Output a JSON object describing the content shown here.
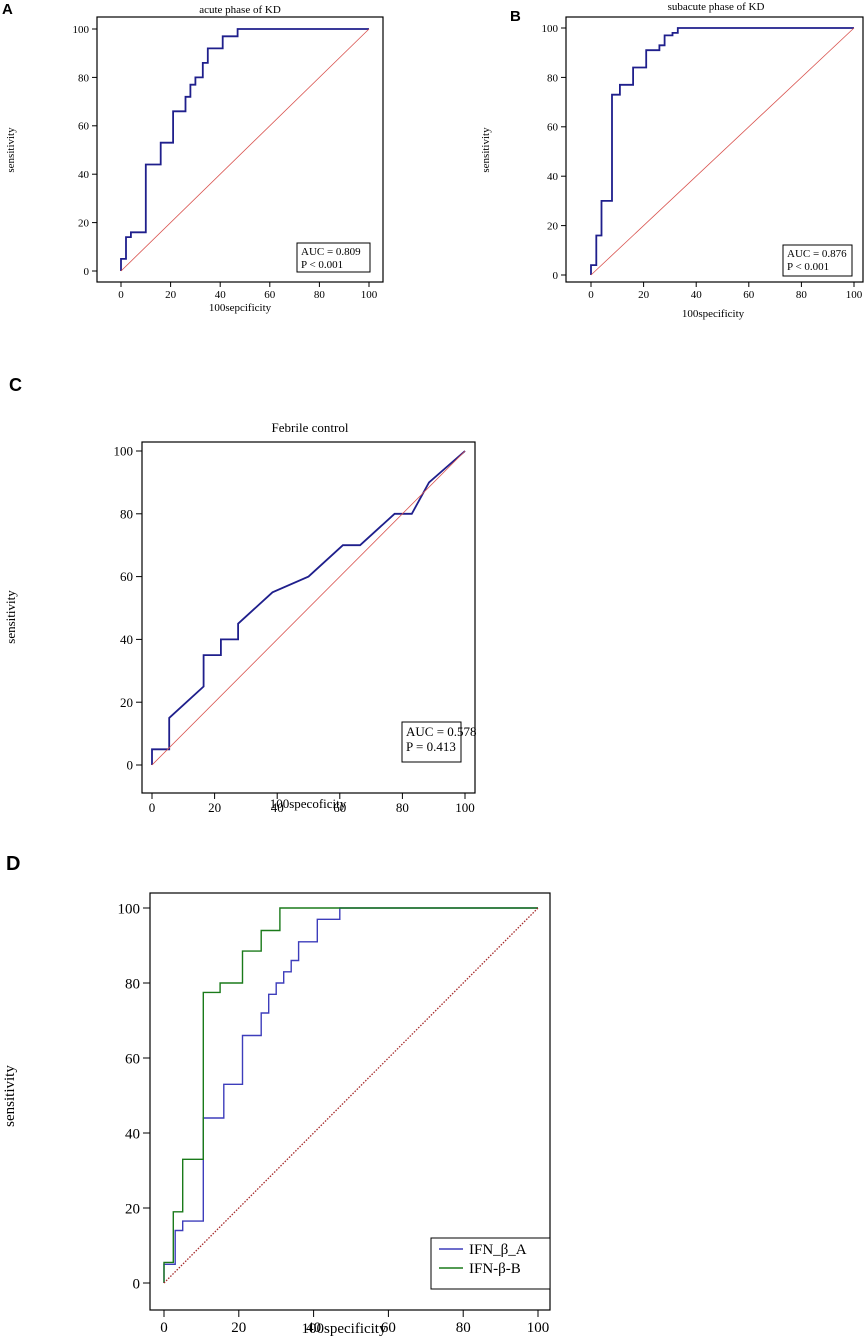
{
  "chart_data": [
    {
      "type": "line",
      "panel_label": "A",
      "title": "acute phase of KD",
      "xlabel": "100sepcificity",
      "ylabel": "sensitivity",
      "xlim": [
        0,
        100
      ],
      "ylim": [
        0,
        100
      ],
      "xticks": [
        "0",
        "20",
        "40",
        "60",
        "80",
        "100"
      ],
      "yticks": [
        "0",
        "20",
        "40",
        "60",
        "80",
        "100"
      ],
      "grid": false,
      "annotation": {
        "lines": [
          "AUC = 0.809",
          "P < 0.001"
        ],
        "placement": "bottom-right"
      },
      "series": [
        {
          "name": "ROC",
          "color": "#1f1f8c",
          "x": [
            0,
            0,
            2,
            2,
            4,
            4,
            10,
            10,
            16,
            16,
            21,
            21,
            26,
            26,
            28,
            28,
            30,
            30,
            33,
            33,
            35,
            35,
            41,
            41,
            47,
            47,
            100
          ],
          "y": [
            0,
            5,
            5,
            14,
            14,
            16,
            16,
            44,
            44,
            53,
            53,
            66,
            66,
            72,
            72,
            77,
            77,
            80,
            80,
            86,
            86,
            92,
            92,
            97,
            97,
            100,
            100
          ]
        },
        {
          "name": "reference",
          "color": "#d9534f",
          "x": [
            0,
            100
          ],
          "y": [
            0,
            100
          ]
        }
      ]
    },
    {
      "type": "line",
      "panel_label": "B",
      "title": "subacute phase of KD",
      "xlabel": "100specificity",
      "ylabel": "sensitivity",
      "xlim": [
        0,
        100
      ],
      "ylim": [
        0,
        100
      ],
      "xticks": [
        "0",
        "20",
        "40",
        "60",
        "80",
        "100"
      ],
      "yticks": [
        "0",
        "20",
        "40",
        "60",
        "80",
        "100"
      ],
      "grid": false,
      "annotation": {
        "lines": [
          "AUC = 0.876",
          "P < 0.001"
        ],
        "placement": "bottom-right"
      },
      "series": [
        {
          "name": "ROC",
          "color": "#1f1f8c",
          "x": [
            0,
            0,
            2,
            2,
            4,
            4,
            8,
            8,
            11,
            11,
            16,
            16,
            21,
            21,
            26,
            26,
            28,
            28,
            31,
            31,
            33,
            33,
            100
          ],
          "y": [
            0,
            4,
            4,
            16,
            16,
            30,
            30,
            73,
            73,
            77,
            77,
            84,
            84,
            91,
            91,
            93,
            93,
            97,
            97,
            98,
            98,
            100,
            100
          ]
        },
        {
          "name": "reference",
          "color": "#d9534f",
          "x": [
            0,
            100
          ],
          "y": [
            0,
            100
          ]
        }
      ]
    },
    {
      "type": "line",
      "panel_label": "C",
      "title": "Febrile control",
      "xlabel": "100specoficity",
      "ylabel": "sensitivity",
      "xlim": [
        0,
        100
      ],
      "ylim": [
        0,
        100
      ],
      "xticks": [
        "0",
        "20",
        "40",
        "60",
        "80",
        "100"
      ],
      "yticks": [
        "0",
        "20",
        "40",
        "60",
        "80",
        "100"
      ],
      "grid": false,
      "annotation": {
        "lines": [
          "AUC = 0.578",
          "P = 0.413"
        ],
        "placement": "bottom-right"
      },
      "series": [
        {
          "name": "ROC",
          "color": "#1f1f8c",
          "x": [
            0,
            0,
            5.5,
            5.5,
            16.5,
            16.5,
            22,
            22,
            27.5,
            27.5,
            38.5,
            50,
            61,
            66.5,
            77.5,
            83,
            88.5,
            100
          ],
          "y": [
            0,
            5,
            5,
            15,
            25,
            35,
            35,
            40,
            40,
            45,
            55,
            60,
            70,
            70,
            80,
            80,
            90,
            100
          ]
        },
        {
          "name": "reference",
          "color": "#d9534f",
          "x": [
            0,
            100
          ],
          "y": [
            0,
            100
          ]
        }
      ]
    },
    {
      "type": "line",
      "panel_label": "D",
      "title": "",
      "xlabel": "100specificity",
      "ylabel": "sensitivity",
      "xlim": [
        0,
        100
      ],
      "ylim": [
        0,
        100
      ],
      "xticks": [
        "0",
        "20",
        "40",
        "60",
        "80",
        "100"
      ],
      "yticks": [
        "0",
        "20",
        "40",
        "60",
        "80",
        "100"
      ],
      "grid": false,
      "legend": {
        "placement": "bottom-right",
        "entries": [
          "IFN_β_A",
          "IFN-β-B"
        ]
      },
      "series": [
        {
          "name": "IFN_β_A",
          "color": "#3d3dbb",
          "x": [
            0,
            0,
            3,
            3,
            5,
            5,
            10.5,
            10.5,
            16,
            16,
            21,
            21,
            26,
            26,
            28,
            28,
            30,
            30,
            32,
            32,
            34,
            34,
            36,
            36,
            41,
            41,
            47,
            47,
            100
          ],
          "y": [
            0,
            5,
            5,
            14,
            14,
            16.5,
            16.5,
            44,
            44,
            53,
            53,
            66,
            66,
            72,
            72,
            77,
            77,
            80,
            80,
            83,
            83,
            86,
            86,
            91,
            91,
            97,
            97,
            100,
            100
          ]
        },
        {
          "name": "IFN-β-B",
          "color": "#1a7a1a",
          "x": [
            0,
            0,
            2.5,
            2.5,
            5,
            5,
            10.5,
            10.5,
            15,
            15,
            21,
            21,
            26,
            26,
            31,
            31,
            100
          ],
          "y": [
            0,
            5.5,
            5.5,
            19,
            19,
            33,
            33,
            77.5,
            77.5,
            80,
            80,
            88.5,
            88.5,
            94,
            94,
            100,
            100
          ]
        },
        {
          "name": "reference",
          "color": "#a52a2a",
          "x": [
            0,
            100
          ],
          "y": [
            0,
            100
          ]
        }
      ]
    }
  ]
}
